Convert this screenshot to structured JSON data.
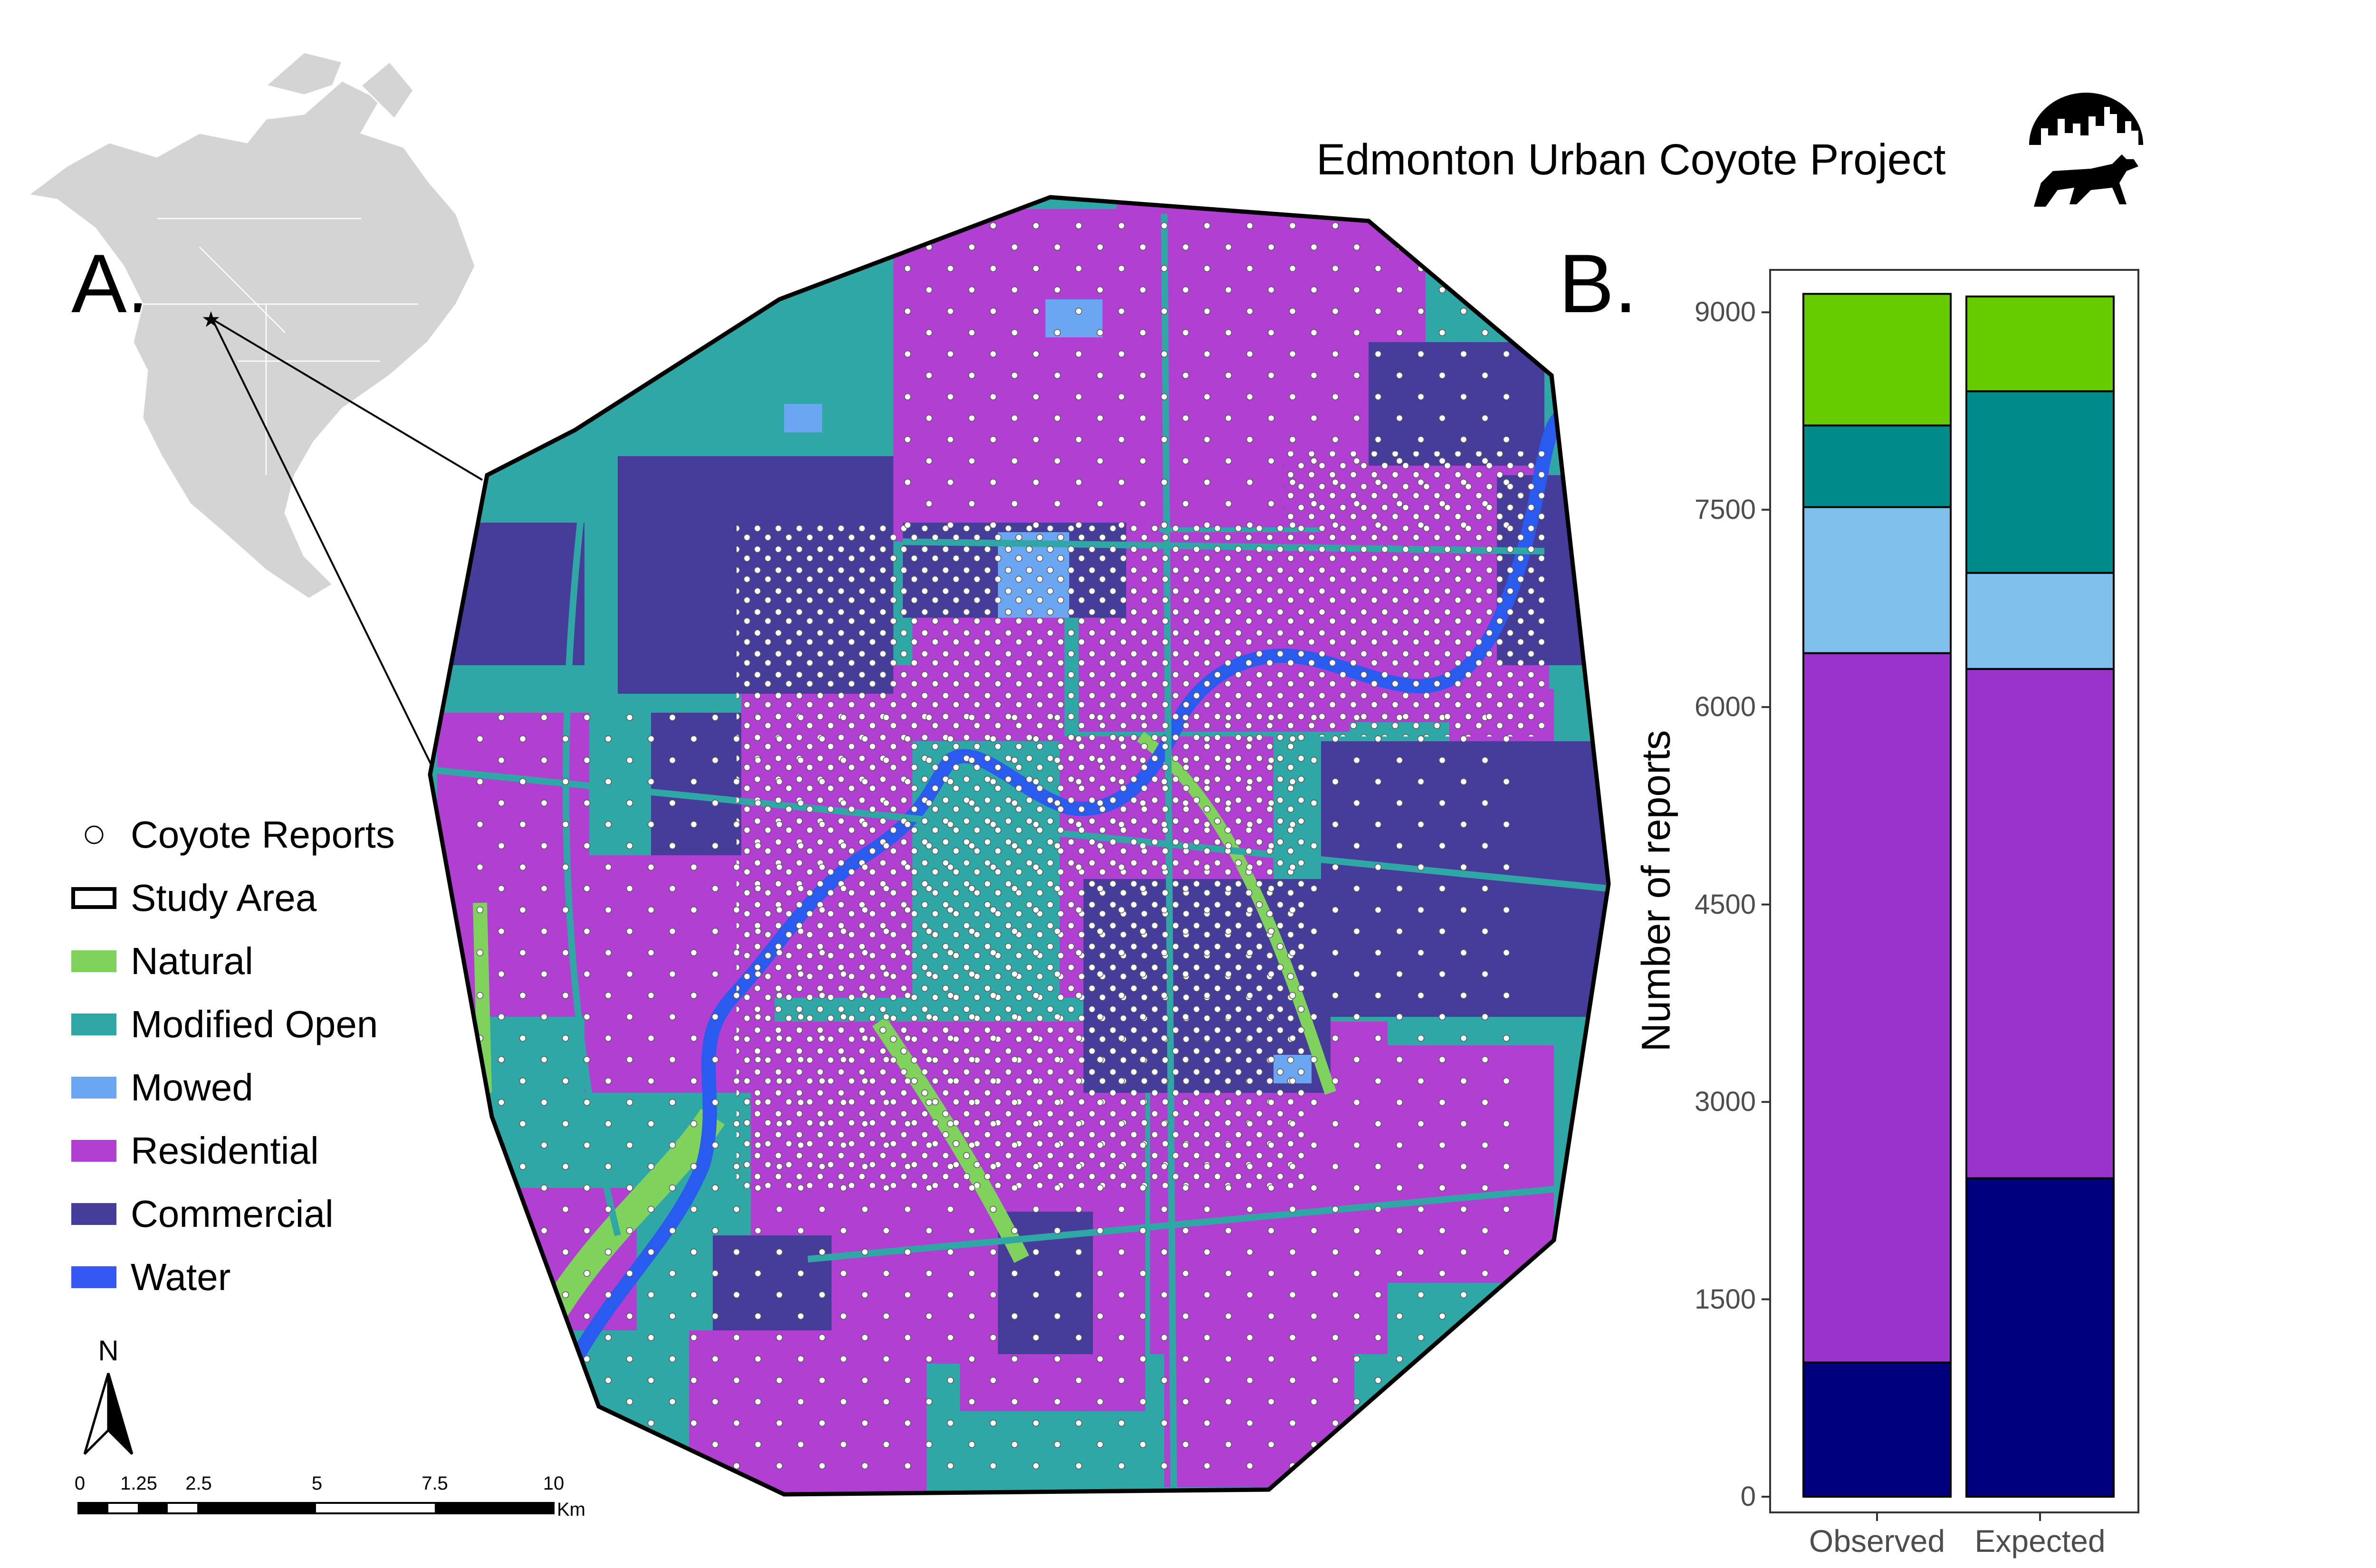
{
  "project_title": "Edmonton Urban Coyote Project",
  "panel_a_label": "A.",
  "panel_b_label": "B.",
  "colors": {
    "natural": "#7fd35c",
    "modified_open": "#2fa8a5",
    "mowed": "#6aa6f2",
    "residential": "#b13fd1",
    "commercial": "#463d9b",
    "water": "#3557f3",
    "bar_natural": "#66cc00",
    "bar_modified_open": "#008b8b",
    "bar_mowed": "#7fbfec",
    "bar_residential": "#9933cc",
    "bar_commercial": "#00007f"
  },
  "legend": {
    "reports": "Coyote Reports",
    "study_area": "Study Area",
    "natural": "Natural",
    "modified_open": "Modified Open",
    "mowed": "Mowed",
    "residential": "Residential",
    "commercial": "Commercial",
    "water": "Water"
  },
  "north_label": "N",
  "scale_bar": {
    "ticks": [
      "0",
      "1.25",
      "2.5",
      "5",
      "7.5",
      "10"
    ],
    "unit": "Km"
  },
  "chart_data": {
    "type": "bar",
    "stacked": true,
    "categories": [
      "Observed",
      "Expected"
    ],
    "series": [
      {
        "key": "commercial",
        "values": [
          1020,
          2420
        ]
      },
      {
        "key": "residential",
        "values": [
          5390,
          3870
        ]
      },
      {
        "key": "mowed",
        "values": [
          1110,
          730
        ]
      },
      {
        "key": "modified_open",
        "values": [
          620,
          1380
        ]
      },
      {
        "key": "natural",
        "values": [
          1000,
          720
        ]
      }
    ],
    "ylabel": "Number of reports",
    "yticks": [
      "0",
      "1500",
      "3000",
      "4500",
      "6000",
      "7500",
      "9000"
    ],
    "ylim": [
      0,
      9250
    ],
    "grid": false
  }
}
